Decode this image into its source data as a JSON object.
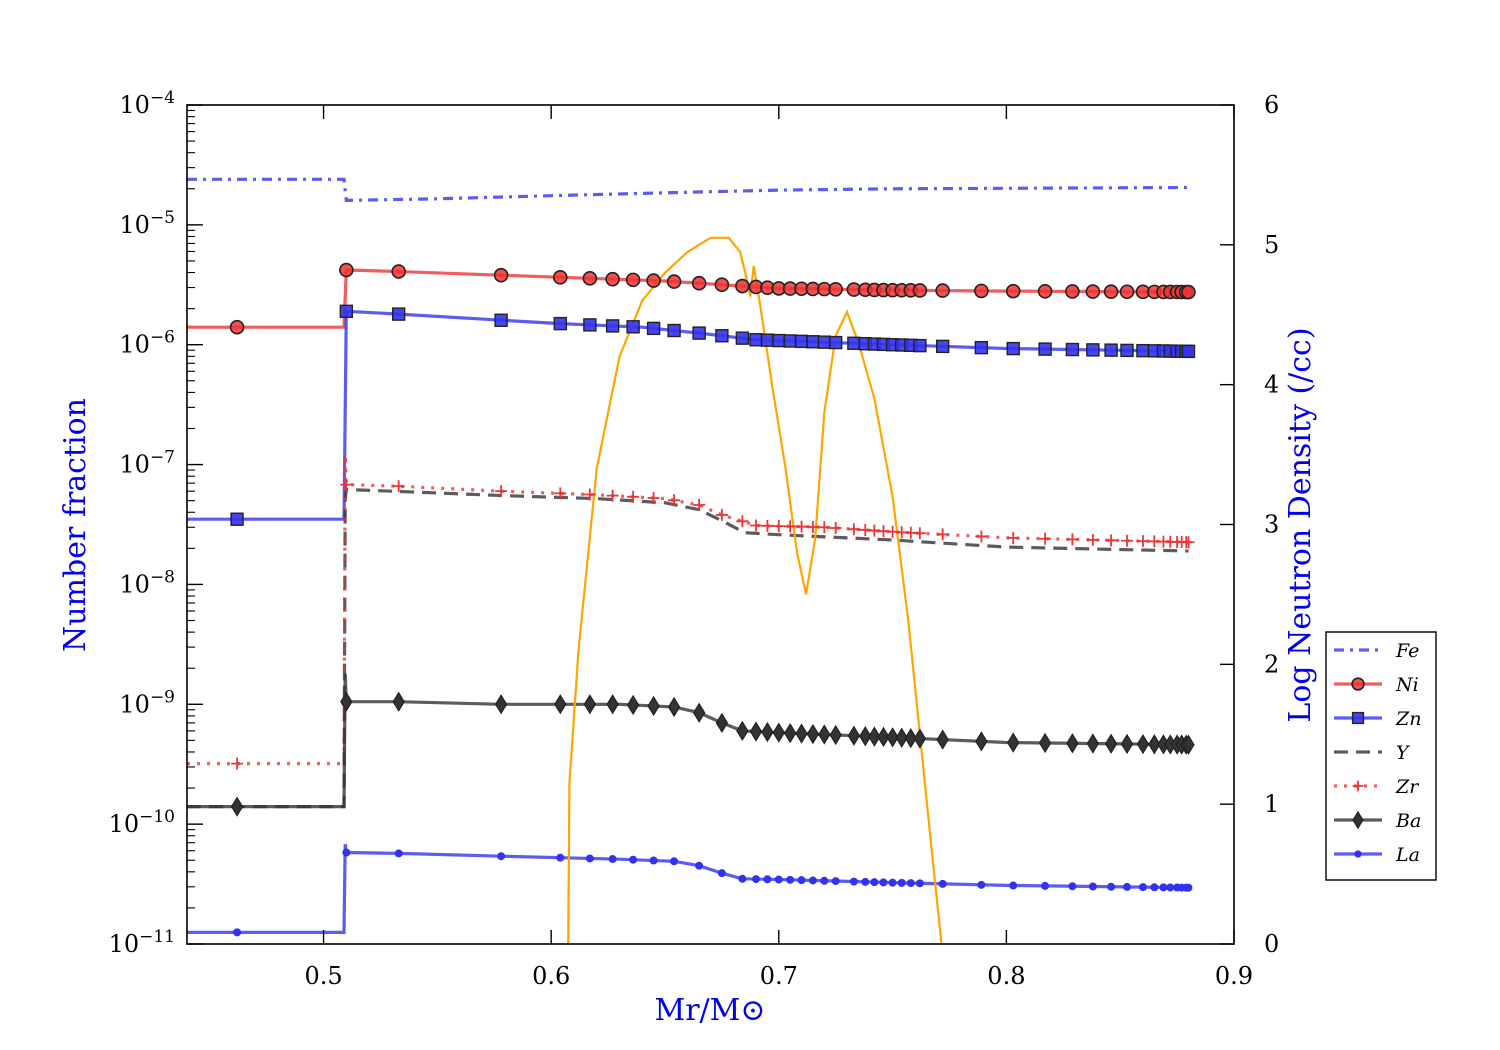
{
  "chart_data": {
    "type": "line",
    "xlabel": "Mr/M⊙",
    "ylabel": "Number fraction",
    "y2label": "Log Neutron Density (/cc)",
    "xlim": [
      0.44,
      0.9
    ],
    "ylim": [
      1e-11,
      0.0001
    ],
    "yscale": "log",
    "y2lim": [
      0,
      6
    ],
    "grid": false,
    "legend_position": "right",
    "x_ticks": [
      0.5,
      0.6,
      0.7,
      0.8,
      0.9
    ],
    "x_tick_labels": [
      "0.5",
      "0.6",
      "0.7",
      "0.8",
      "0.9"
    ],
    "y_ticks": [
      {
        "value": 0.0001,
        "base": "10",
        "exp": "−4"
      },
      {
        "value": 1e-05,
        "base": "10",
        "exp": "−5"
      },
      {
        "value": 1e-06,
        "base": "10",
        "exp": "−6"
      },
      {
        "value": 1e-07,
        "base": "10",
        "exp": "−7"
      },
      {
        "value": 1e-08,
        "base": "10",
        "exp": "−8"
      },
      {
        "value": 1e-09,
        "base": "10",
        "exp": "−9"
      },
      {
        "value": 1e-10,
        "base": "10",
        "exp": "−10"
      },
      {
        "value": 1e-11,
        "base": "10",
        "exp": "−11"
      }
    ],
    "y2_ticks": [
      0,
      1,
      2,
      3,
      4,
      5,
      6
    ],
    "y2_tick_labels": [
      "0",
      "1",
      "2",
      "3",
      "4",
      "5",
      "6"
    ],
    "colors": {
      "blue": "#3333ee",
      "red": "#ee3333",
      "black": "#333333",
      "orange": "#ffa500",
      "label_blue": "#0000ee"
    },
    "series": [
      {
        "name": "Fe",
        "color": "#3333ee",
        "dash": "dashdot",
        "marker": "none",
        "points": [
          [
            0.44,
            2.4e-05
          ],
          [
            0.509,
            2.4e-05
          ],
          [
            0.51,
            1.6e-05
          ],
          [
            0.55,
            1.65e-05
          ],
          [
            0.6,
            1.75e-05
          ],
          [
            0.65,
            1.85e-05
          ],
          [
            0.7,
            1.95e-05
          ],
          [
            0.75,
            2e-05
          ],
          [
            0.8,
            2.02e-05
          ],
          [
            0.88,
            2.05e-05
          ]
        ]
      },
      {
        "name": "Ni",
        "color": "#ee3333",
        "dash": "solid",
        "marker": "circle",
        "points": [
          [
            0.44,
            1.4e-06
          ],
          [
            0.509,
            1.4e-06
          ],
          [
            0.51,
            4.2e-06
          ],
          [
            0.53,
            4.1e-06
          ],
          [
            0.578,
            3.8e-06
          ],
          [
            0.65,
            3.4e-06
          ],
          [
            0.7,
            2.95e-06
          ],
          [
            0.75,
            2.85e-06
          ],
          [
            0.8,
            2.8e-06
          ],
          [
            0.88,
            2.75e-06
          ]
        ],
        "marker_x": [
          0.462,
          0.51,
          0.533,
          0.578,
          0.604,
          0.617,
          0.627,
          0.636,
          0.645,
          0.654,
          0.665,
          0.675,
          0.684,
          0.69,
          0.695,
          0.7,
          0.705,
          0.71,
          0.715,
          0.72,
          0.725,
          0.733,
          0.738,
          0.742,
          0.746,
          0.75,
          0.754,
          0.758,
          0.762,
          0.772,
          0.789,
          0.803,
          0.817,
          0.829,
          0.838,
          0.846,
          0.853,
          0.86,
          0.865,
          0.869,
          0.872,
          0.875,
          0.877,
          0.879,
          0.88
        ]
      },
      {
        "name": "Zn",
        "color": "#3333ee",
        "dash": "solid",
        "marker": "square",
        "points": [
          [
            0.44,
            3.5e-08
          ],
          [
            0.509,
            3.5e-08
          ],
          [
            0.51,
            1.9e-06
          ],
          [
            0.533,
            1.8e-06
          ],
          [
            0.578,
            1.6e-06
          ],
          [
            0.604,
            1.5e-06
          ],
          [
            0.64,
            1.4e-06
          ],
          [
            0.665,
            1.25e-06
          ],
          [
            0.69,
            1.1e-06
          ],
          [
            0.72,
            1.05e-06
          ],
          [
            0.75,
            1e-06
          ],
          [
            0.8,
            9.3e-07
          ],
          [
            0.88,
            8.8e-07
          ]
        ],
        "marker_x": [
          0.462,
          0.51,
          0.533,
          0.578,
          0.604,
          0.617,
          0.627,
          0.636,
          0.645,
          0.654,
          0.665,
          0.675,
          0.684,
          0.69,
          0.695,
          0.7,
          0.705,
          0.71,
          0.715,
          0.72,
          0.725,
          0.733,
          0.738,
          0.742,
          0.746,
          0.75,
          0.754,
          0.758,
          0.762,
          0.772,
          0.789,
          0.803,
          0.817,
          0.829,
          0.838,
          0.846,
          0.853,
          0.86,
          0.865,
          0.869,
          0.872,
          0.875,
          0.877,
          0.879,
          0.88
        ]
      },
      {
        "name": "Y",
        "color": "#333333",
        "dash": "dashed",
        "marker": "none",
        "points": [
          [
            0.44,
            1.4e-10
          ],
          [
            0.509,
            1.4e-10
          ],
          [
            0.5095,
            5e-08
          ],
          [
            0.51,
            6.2e-08
          ],
          [
            0.53,
            6e-08
          ],
          [
            0.58,
            5.5e-08
          ],
          [
            0.62,
            5.2e-08
          ],
          [
            0.65,
            4.8e-08
          ],
          [
            0.665,
            4.2e-08
          ],
          [
            0.675,
            3.4e-08
          ],
          [
            0.685,
            2.7e-08
          ],
          [
            0.7,
            2.6e-08
          ],
          [
            0.75,
            2.35e-08
          ],
          [
            0.8,
            2.05e-08
          ],
          [
            0.88,
            1.9e-08
          ]
        ]
      },
      {
        "name": "Zr",
        "color": "#ee3333",
        "dash": "dotted",
        "marker": "plus",
        "points": [
          [
            0.44,
            3.2e-10
          ],
          [
            0.509,
            3.2e-10
          ],
          [
            0.5095,
            1.2e-07
          ],
          [
            0.51,
            6.8e-08
          ],
          [
            0.533,
            6.6e-08
          ],
          [
            0.578,
            6e-08
          ],
          [
            0.62,
            5.6e-08
          ],
          [
            0.65,
            5.2e-08
          ],
          [
            0.665,
            4.6e-08
          ],
          [
            0.675,
            3.8e-08
          ],
          [
            0.69,
            3.1e-08
          ],
          [
            0.72,
            3e-08
          ],
          [
            0.75,
            2.75e-08
          ],
          [
            0.8,
            2.45e-08
          ],
          [
            0.88,
            2.25e-08
          ]
        ],
        "marker_x": [
          0.462,
          0.51,
          0.533,
          0.578,
          0.604,
          0.617,
          0.627,
          0.636,
          0.645,
          0.654,
          0.665,
          0.675,
          0.684,
          0.69,
          0.695,
          0.7,
          0.705,
          0.71,
          0.715,
          0.72,
          0.725,
          0.733,
          0.738,
          0.742,
          0.746,
          0.75,
          0.754,
          0.758,
          0.762,
          0.772,
          0.789,
          0.803,
          0.817,
          0.829,
          0.838,
          0.846,
          0.853,
          0.86,
          0.865,
          0.869,
          0.872,
          0.875,
          0.877,
          0.879,
          0.88
        ]
      },
      {
        "name": "Ba",
        "color": "#333333",
        "dash": "solid",
        "marker": "diamond",
        "points": [
          [
            0.44,
            1.4e-10
          ],
          [
            0.509,
            1.4e-10
          ],
          [
            0.5095,
            1.8e-09
          ],
          [
            0.51,
            1.05e-09
          ],
          [
            0.533,
            1.05e-09
          ],
          [
            0.578,
            1e-09
          ],
          [
            0.63,
            1e-09
          ],
          [
            0.654,
            9.5e-10
          ],
          [
            0.665,
            8.5e-10
          ],
          [
            0.675,
            7e-10
          ],
          [
            0.684,
            6e-10
          ],
          [
            0.7,
            5.8e-10
          ],
          [
            0.75,
            5.3e-10
          ],
          [
            0.8,
            4.8e-10
          ],
          [
            0.88,
            4.6e-10
          ]
        ],
        "marker_x": [
          0.462,
          0.51,
          0.533,
          0.578,
          0.604,
          0.617,
          0.627,
          0.636,
          0.645,
          0.654,
          0.665,
          0.675,
          0.684,
          0.69,
          0.695,
          0.7,
          0.705,
          0.71,
          0.715,
          0.72,
          0.725,
          0.733,
          0.738,
          0.742,
          0.746,
          0.75,
          0.754,
          0.758,
          0.762,
          0.772,
          0.789,
          0.803,
          0.817,
          0.829,
          0.838,
          0.846,
          0.853,
          0.86,
          0.865,
          0.869,
          0.872,
          0.875,
          0.877,
          0.879,
          0.88
        ]
      },
      {
        "name": "La",
        "color": "#3333ee",
        "dash": "solid",
        "marker": "dot",
        "points": [
          [
            0.44,
            1.25e-11
          ],
          [
            0.509,
            1.25e-11
          ],
          [
            0.5095,
            6.8e-11
          ],
          [
            0.51,
            5.8e-11
          ],
          [
            0.533,
            5.7e-11
          ],
          [
            0.578,
            5.4e-11
          ],
          [
            0.63,
            5.1e-11
          ],
          [
            0.654,
            4.9e-11
          ],
          [
            0.665,
            4.5e-11
          ],
          [
            0.675,
            3.9e-11
          ],
          [
            0.684,
            3.5e-11
          ],
          [
            0.7,
            3.45e-11
          ],
          [
            0.75,
            3.25e-11
          ],
          [
            0.8,
            3.08e-11
          ],
          [
            0.88,
            2.95e-11
          ]
        ],
        "marker_x": [
          0.462,
          0.51,
          0.533,
          0.578,
          0.604,
          0.617,
          0.627,
          0.636,
          0.645,
          0.654,
          0.665,
          0.675,
          0.684,
          0.69,
          0.695,
          0.7,
          0.705,
          0.71,
          0.715,
          0.72,
          0.725,
          0.733,
          0.738,
          0.742,
          0.746,
          0.75,
          0.754,
          0.758,
          0.762,
          0.772,
          0.789,
          0.803,
          0.817,
          0.829,
          0.838,
          0.846,
          0.853,
          0.86,
          0.865,
          0.869,
          0.872,
          0.875,
          0.877,
          0.879,
          0.88
        ]
      }
    ],
    "neutron_density": {
      "axis": "right",
      "color": "#ffa500",
      "points": [
        [
          0.6075,
          0.0
        ],
        [
          0.608,
          1.15
        ],
        [
          0.612,
          2.1
        ],
        [
          0.62,
          3.4
        ],
        [
          0.63,
          4.2
        ],
        [
          0.64,
          4.6
        ],
        [
          0.65,
          4.8
        ],
        [
          0.66,
          4.95
        ],
        [
          0.67,
          5.05
        ],
        [
          0.678,
          5.05
        ],
        [
          0.683,
          4.95
        ],
        [
          0.686,
          4.75
        ],
        [
          0.6875,
          4.63
        ],
        [
          0.689,
          4.85
        ],
        [
          0.692,
          4.55
        ],
        [
          0.697,
          4.0
        ],
        [
          0.703,
          3.4
        ],
        [
          0.708,
          2.8
        ],
        [
          0.712,
          2.5
        ],
        [
          0.716,
          2.9
        ],
        [
          0.72,
          3.8
        ],
        [
          0.725,
          4.35
        ],
        [
          0.73,
          4.52
        ],
        [
          0.735,
          4.3
        ],
        [
          0.742,
          3.9
        ],
        [
          0.75,
          3.2
        ],
        [
          0.757,
          2.3
        ],
        [
          0.762,
          1.5
        ],
        [
          0.767,
          0.7
        ],
        [
          0.7715,
          0.0
        ]
      ]
    }
  }
}
